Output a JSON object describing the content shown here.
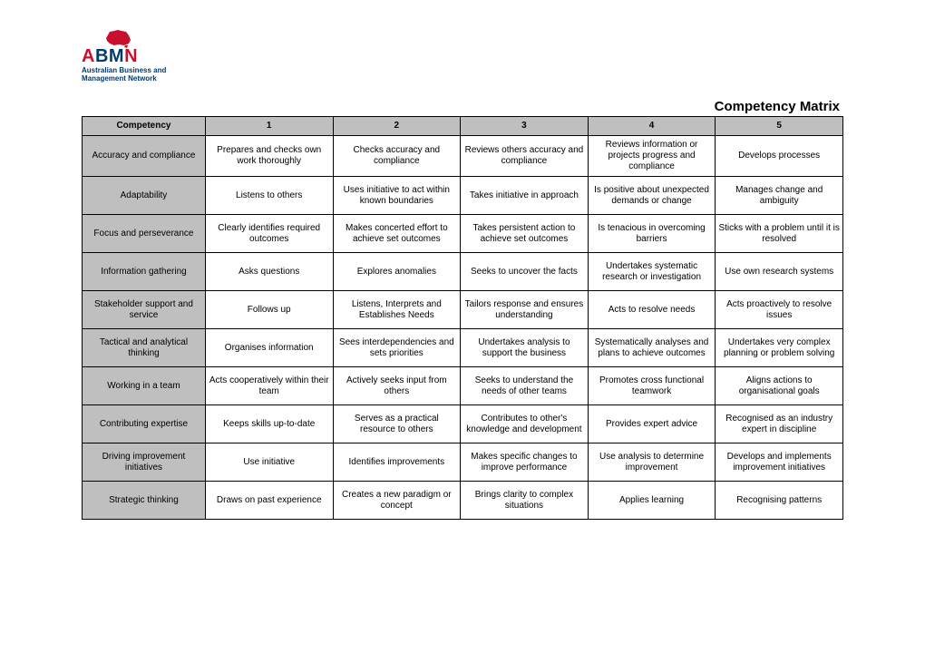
{
  "logo": {
    "acronym_letters": [
      "A",
      "B",
      "M",
      "N"
    ],
    "subtitle_line1": "Australian Business and",
    "subtitle_line2": "Management Network",
    "map_fill": "#c8102e"
  },
  "title": "Competency Matrix",
  "colors": {
    "header_bg": "#bfbfbf",
    "border": "#000000",
    "page_bg": "#ffffff"
  },
  "table": {
    "columns": [
      "Competency",
      "1",
      "2",
      "3",
      "4",
      "5"
    ],
    "rows": [
      {
        "name": "Accuracy and compliance",
        "levels": [
          "Prepares and checks own work thoroughly",
          "Checks accuracy and compliance",
          "Reviews others accuracy and compliance",
          "Reviews information or projects progress and compliance",
          "Develops processes"
        ]
      },
      {
        "name": "Adaptability",
        "levels": [
          "Listens to others",
          "Uses initiative to act within known boundaries",
          "Takes initiative in approach",
          "Is positive about unexpected demands or change",
          "Manages change and ambiguity"
        ]
      },
      {
        "name": "Focus and perseverance",
        "levels": [
          "Clearly identifies required outcomes",
          "Makes concerted effort to achieve set outcomes",
          "Takes persistent action to achieve set outcomes",
          "Is tenacious in overcoming barriers",
          "Sticks with a problem until it is resolved"
        ]
      },
      {
        "name": "Information gathering",
        "levels": [
          "Asks questions",
          "Explores anomalies",
          "Seeks to uncover the facts",
          "Undertakes systematic research or investigation",
          "Use own research systems"
        ]
      },
      {
        "name": "Stakeholder support and service",
        "levels": [
          "Follows up",
          "Listens, Interprets and Establishes Needs",
          "Tailors response and ensures understanding",
          "Acts to resolve needs",
          "Acts proactively to resolve issues"
        ]
      },
      {
        "name": "Tactical and analytical thinking",
        "levels": [
          "Organises information",
          "Sees interdependencies and sets priorities",
          "Undertakes analysis to support the business",
          "Systematically analyses and plans to achieve outcomes",
          "Undertakes very complex planning or problem solving"
        ]
      },
      {
        "name": "Working in a team",
        "levels": [
          "Acts cooperatively within their team",
          "Actively seeks input from others",
          "Seeks to understand the needs of other teams",
          "Promotes cross functional teamwork",
          "Aligns actions to organisational goals"
        ]
      },
      {
        "name": "Contributing expertise",
        "levels": [
          "Keeps skills up-to-date",
          "Serves as a practical resource to others",
          "Contributes to other's knowledge and development",
          "Provides expert advice",
          "Recognised as an industry expert in discipline"
        ]
      },
      {
        "name": "Driving improvement initiatives",
        "levels": [
          "Use initiative",
          "Identifies improvements",
          "Makes specific changes to improve performance",
          "Use analysis to determine improvement",
          "Develops and implements improvement initiatives"
        ]
      },
      {
        "name": "Strategic thinking",
        "levels": [
          "Draws on past experience",
          "Creates a new paradigm or concept",
          "Brings clarity to complex situations",
          "Applies learning",
          "Recognising patterns"
        ]
      }
    ]
  }
}
